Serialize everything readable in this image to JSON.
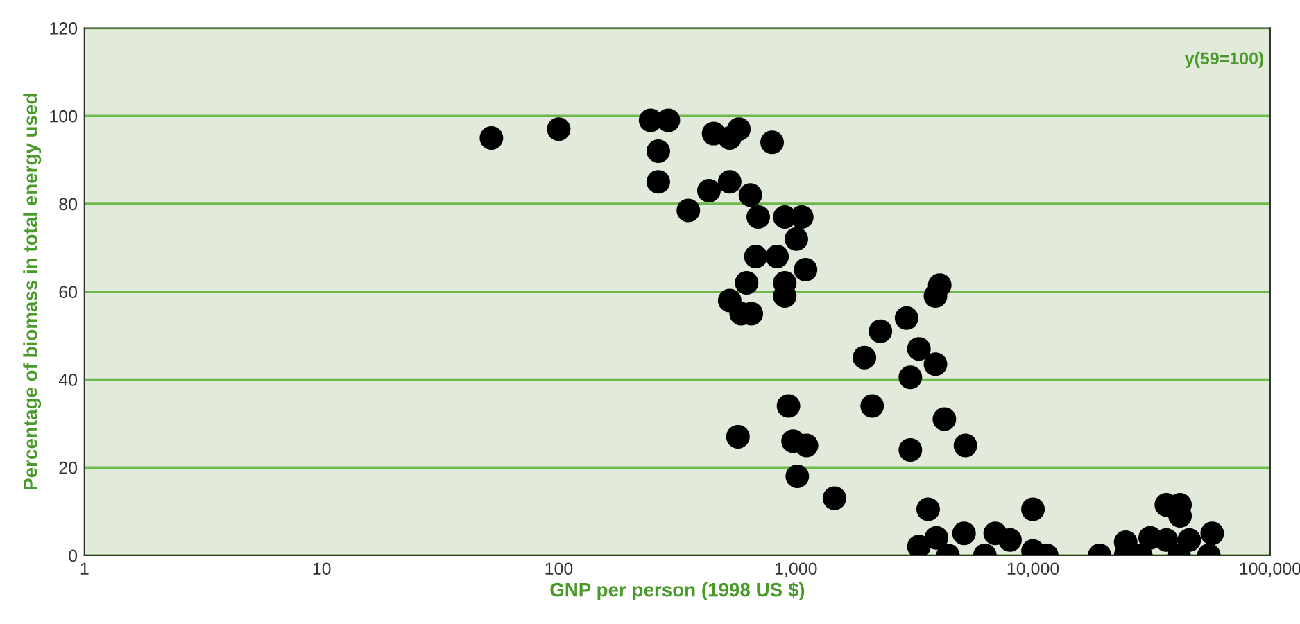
{
  "chart_data": {
    "type": "scatter",
    "xlabel": "GNP per person (1998 US $)",
    "ylabel": "Percentage of biomass in total energy used",
    "annotations": [
      "y(59=100)"
    ],
    "x": [
      52,
      100,
      244,
      290,
      263,
      263,
      352,
      450,
      526,
      575,
      794,
      430,
      526,
      643,
      694,
      898,
      1059,
      1005,
      678,
      833,
      1099,
      898,
      620,
      898,
      526,
      588,
      649,
      931,
      570,
      973,
      1109,
      1014,
      1455,
      4044,
      3880,
      2930,
      2274,
      1946,
      3304,
      3880,
      3040,
      2098,
      4230,
      3040,
      5190,
      3614,
      10000,
      3304,
      3917,
      4380,
      5120,
      6270,
      6930,
      8000,
      10000,
      11430,
      19100,
      24600,
      24600,
      28500,
      31200,
      36500,
      41700,
      41700,
      36500,
      41300,
      45600,
      57000,
      55200
    ],
    "values": [
      95,
      97,
      99,
      99,
      92,
      85,
      78.5,
      96,
      95,
      97,
      94,
      83,
      85,
      82,
      77,
      77,
      77,
      72,
      68,
      68,
      65,
      62,
      62,
      59,
      58,
      55,
      55,
      34,
      27,
      26,
      25,
      18,
      13,
      61.5,
      59,
      54,
      51,
      45,
      47,
      43.5,
      40.5,
      34,
      31,
      24,
      25,
      10.5,
      10.5,
      2,
      4,
      0,
      5,
      0,
      5,
      3.5,
      1,
      0,
      0,
      3,
      0,
      0,
      4,
      11.5,
      11.5,
      9,
      3.5,
      0,
      3.5,
      5,
      0
    ],
    "color": "#000000",
    "marker": "circle",
    "log": "x",
    "xlim": [
      1,
      100000
    ],
    "xticks": [
      1,
      10,
      100,
      {
        "value": 1000,
        "label": "1,000"
      },
      {
        "value": 10000,
        "label": "10,000"
      },
      {
        "value": 100000,
        "label": "100,000"
      }
    ],
    "ylim": [
      0,
      120
    ],
    "yticks": [
      0,
      20,
      40,
      60,
      80,
      100,
      120
    ],
    "grid": "y",
    "legend": false
  }
}
